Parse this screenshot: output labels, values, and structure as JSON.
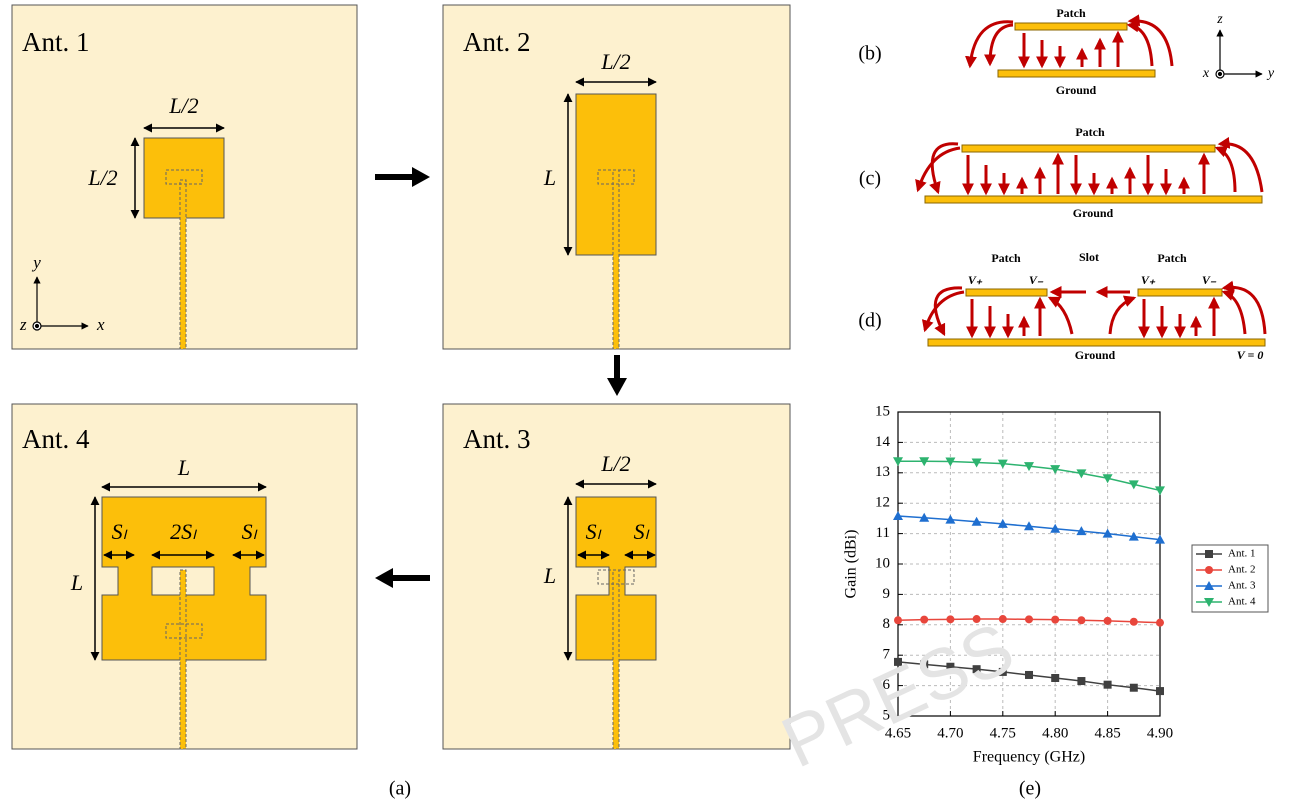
{
  "antennas": [
    {
      "title": "Ant. 1",
      "dims": [
        "L/2",
        "L/2"
      ]
    },
    {
      "title": "Ant. 2",
      "dims": [
        "L/2",
        "L"
      ]
    },
    {
      "title": "Ant. 3",
      "dims": [
        "L/2",
        "L",
        "Sₗ",
        "Sₗ"
      ]
    },
    {
      "title": "Ant. 4",
      "dims": [
        "L",
        "L",
        "Sₗ",
        "2Sₗ",
        "Sₗ"
      ]
    }
  ],
  "coordinates": {
    "x": "x",
    "y": "y",
    "z": "z"
  },
  "panel_labels": [
    "(a)",
    "(b)",
    "(c)",
    "(d)",
    "(e)"
  ],
  "cross_sections": {
    "b": {
      "patch": "Patch",
      "ground": "Ground",
      "axes": [
        "z",
        "x",
        "y"
      ]
    },
    "c": {
      "patch": "Patch",
      "ground": "Ground"
    },
    "d": {
      "patches": [
        "Patch",
        "Patch"
      ],
      "slot": "Slot",
      "ground": "Ground",
      "potentials": [
        "V₊",
        "V₋",
        "V₊",
        "V₋"
      ],
      "ground_potential": "V = 0"
    }
  },
  "watermark": "PRESS",
  "chart_data": {
    "type": "line",
    "x_label": "Frequency (GHz)",
    "y_label": "Gain (dBi)",
    "x": [
      4.65,
      4.675,
      4.7,
      4.725,
      4.75,
      4.775,
      4.8,
      4.825,
      4.85,
      4.875,
      4.9
    ],
    "series": [
      {
        "name": "Ant. 1",
        "color": "#404040",
        "marker": "square",
        "values": [
          6.78,
          6.7,
          6.62,
          6.54,
          6.45,
          6.35,
          6.25,
          6.15,
          6.03,
          5.93,
          5.82
        ]
      },
      {
        "name": "Ant. 2",
        "color": "#e8463c",
        "marker": "circle",
        "values": [
          8.15,
          8.17,
          8.18,
          8.19,
          8.19,
          8.18,
          8.17,
          8.15,
          8.13,
          8.1,
          8.07
        ]
      },
      {
        "name": "Ant. 3",
        "color": "#1f6fd0",
        "marker": "triangle-up",
        "values": [
          11.58,
          11.52,
          11.46,
          11.39,
          11.32,
          11.24,
          11.16,
          11.08,
          11.0,
          10.9,
          10.8
        ]
      },
      {
        "name": "Ant. 4",
        "color": "#2db36f",
        "marker": "triangle-down",
        "values": [
          13.38,
          13.38,
          13.37,
          13.34,
          13.3,
          13.22,
          13.12,
          12.98,
          12.82,
          12.62,
          12.42
        ]
      }
    ],
    "xlim": [
      4.65,
      4.9
    ],
    "xticks": [
      4.65,
      {
        "value": 4.7,
        "label": "4.70"
      },
      4.75,
      {
        "value": 4.8,
        "label": "4.80"
      },
      4.85,
      {
        "value": 4.9,
        "label": "4.90"
      }
    ],
    "ylim": [
      5,
      15
    ],
    "yticks": [
      5,
      6,
      7,
      8,
      9,
      10,
      11,
      12,
      13,
      14,
      15
    ],
    "grid": true,
    "legend": "right"
  }
}
